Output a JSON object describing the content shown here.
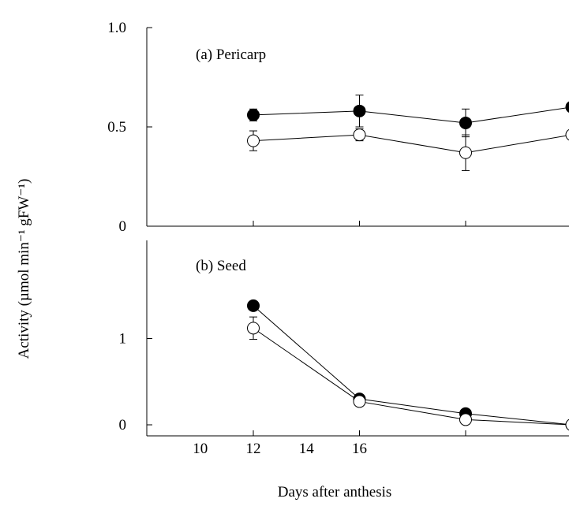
{
  "chart_data": [
    {
      "type": "line",
      "panel_label": "(a) Pericarp",
      "x": [
        12,
        16,
        20,
        24
      ],
      "ylim": [
        0,
        1.0
      ],
      "yticks": [
        {
          "value": 0,
          "label": "0"
        },
        {
          "value": 0.5,
          "label": "0.5"
        },
        {
          "value": 1.0,
          "label": "1.0"
        }
      ],
      "series": [
        {
          "marker": "filled",
          "color": "#000000",
          "values": [
            0.56,
            0.58,
            0.52,
            0.6
          ],
          "err": [
            0.03,
            0.08,
            0.07,
            0.0
          ]
        },
        {
          "marker": "open",
          "color": "#ffffff",
          "values": [
            0.43,
            0.46,
            0.37,
            0.46
          ],
          "err": [
            0.05,
            0.03,
            0.09,
            0.0
          ]
        }
      ]
    },
    {
      "type": "line",
      "panel_label": "(b) Seed",
      "x": [
        12,
        16,
        20,
        24
      ],
      "ylim": [
        -0.05,
        2.0
      ],
      "yticks": [
        {
          "value": 0,
          "label": "0"
        },
        {
          "value": 1,
          "label": "1"
        }
      ],
      "series": [
        {
          "marker": "filled",
          "color": "#000000",
          "values": [
            1.38,
            0.3,
            0.13,
            0.0
          ],
          "err": [
            0.0,
            0.0,
            0.0,
            0.0
          ]
        },
        {
          "marker": "open",
          "color": "#ffffff",
          "values": [
            1.12,
            0.27,
            0.06,
            0.0
          ],
          "err": [
            0.13,
            0.0,
            0.0,
            0.0
          ]
        }
      ]
    }
  ],
  "x_axis": {
    "ticks": [
      {
        "value": 10,
        "label": "10"
      },
      {
        "value": 12,
        "label": "12"
      },
      {
        "value": 14,
        "label": "14"
      },
      {
        "value": 16,
        "label": "16"
      },
      {
        "value": 20,
        "label": ""
      },
      {
        "value": 24,
        "label": ""
      }
    ],
    "title": "Days after anthesis"
  },
  "y_axis_title": "Activity  (µmol min⁻¹ gFW⁻¹)"
}
